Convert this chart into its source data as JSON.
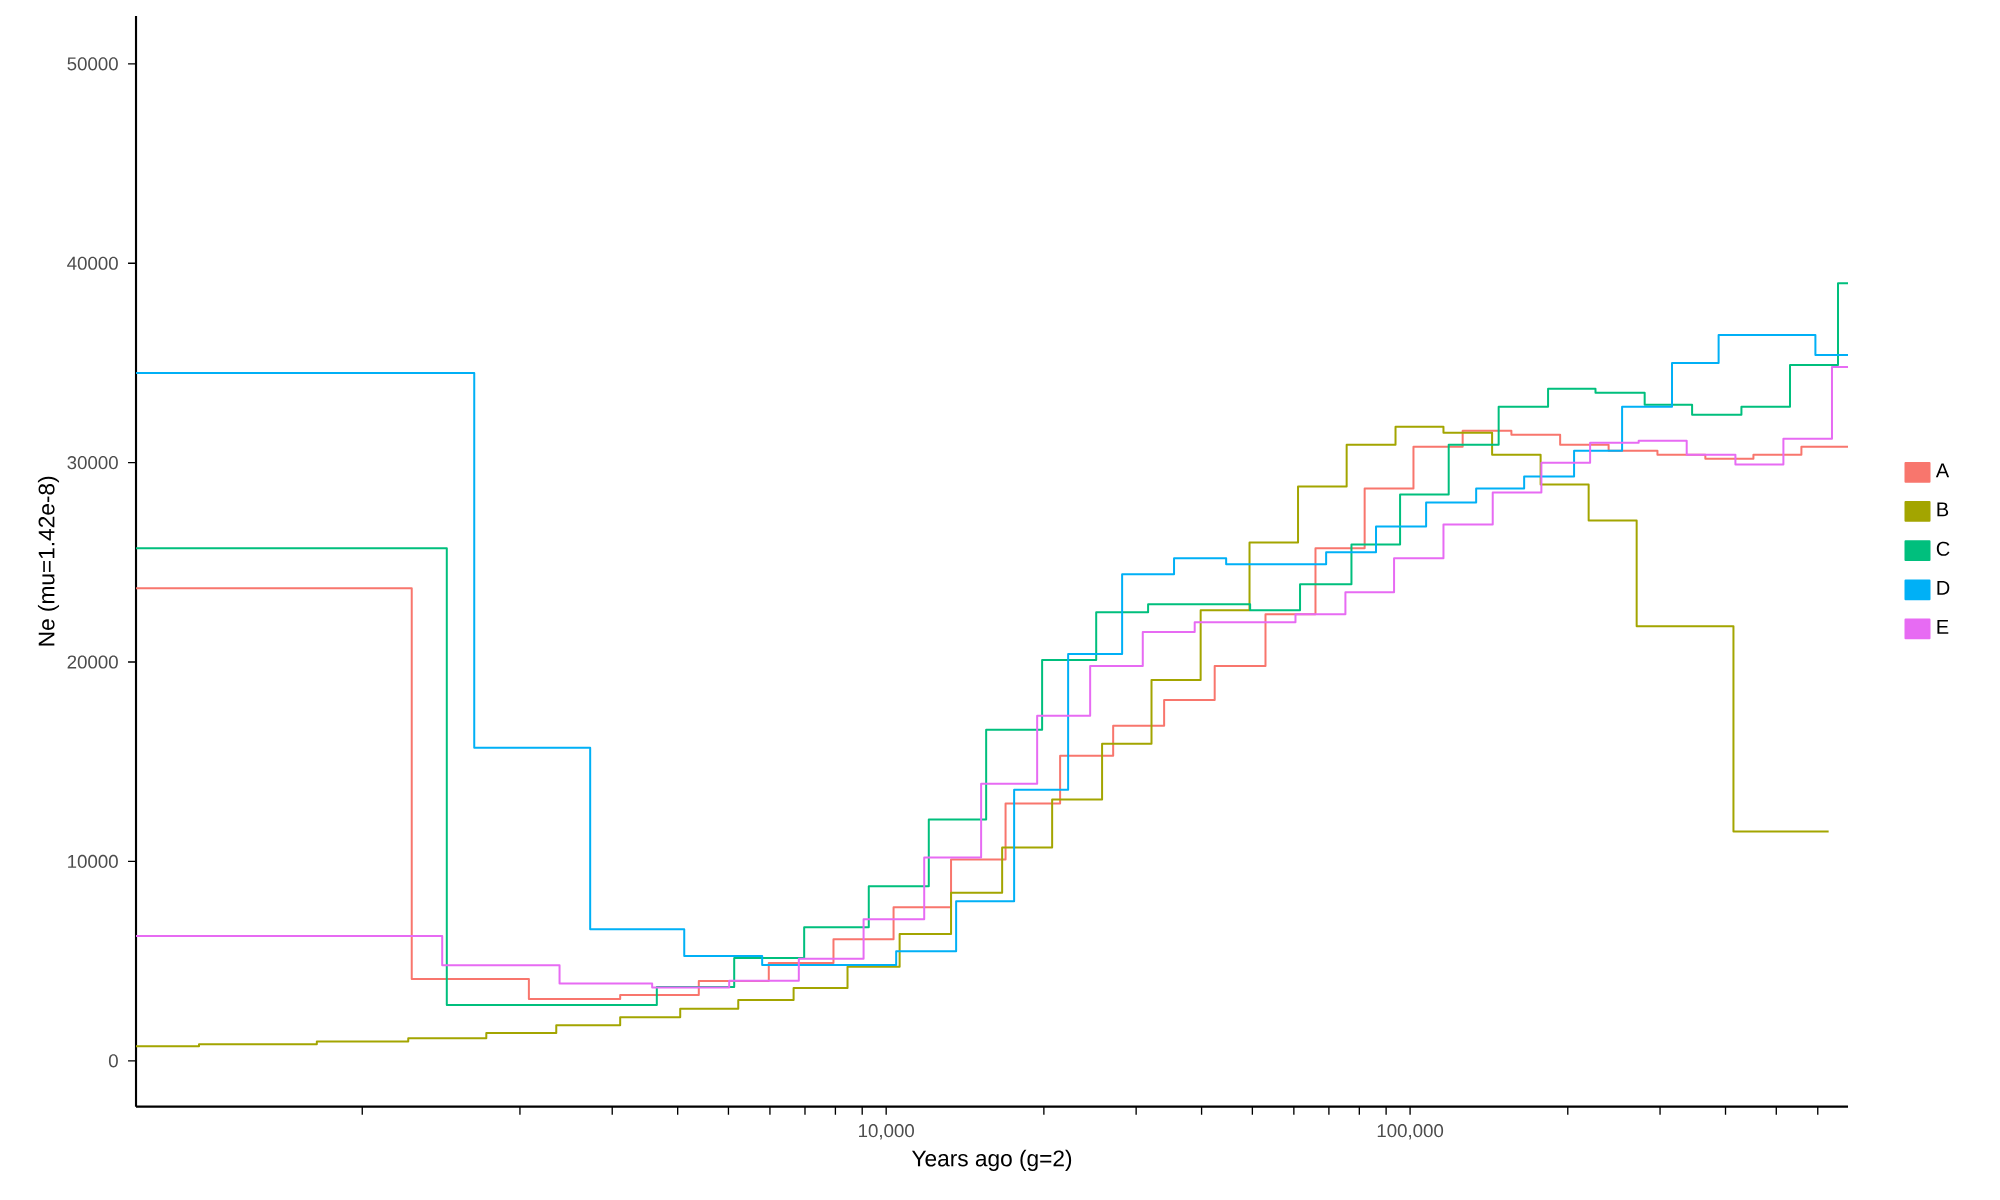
{
  "chart_data": {
    "type": "step",
    "xlabel": "Years ago (g=2)",
    "ylabel": "Ne (mu=1.42e-8)",
    "log": "x",
    "legend": "right",
    "xlim": [
      370,
      685400
    ],
    "ylim": [
      -2300,
      52400
    ],
    "xticks": [
      {
        "value": 1000,
        "label": null
      },
      {
        "value": 2000,
        "label": null
      },
      {
        "value": 3000,
        "label": null
      },
      {
        "value": 4000,
        "label": null
      },
      {
        "value": 5000,
        "label": null
      },
      {
        "value": 6000,
        "label": null
      },
      {
        "value": 7000,
        "label": null
      },
      {
        "value": 8000,
        "label": null
      },
      {
        "value": 9000,
        "label": null
      },
      {
        "value": 10000,
        "label": "10,000"
      },
      {
        "value": 20000,
        "label": null
      },
      {
        "value": 30000,
        "label": null
      },
      {
        "value": 40000,
        "label": null
      },
      {
        "value": 50000,
        "label": null
      },
      {
        "value": 60000,
        "label": null
      },
      {
        "value": 70000,
        "label": null
      },
      {
        "value": 80000,
        "label": null
      },
      {
        "value": 90000,
        "label": null
      },
      {
        "value": 100000,
        "label": "100,000"
      },
      {
        "value": 200000,
        "label": null
      },
      {
        "value": 300000,
        "label": null
      },
      {
        "value": 400000,
        "label": null
      },
      {
        "value": 500000,
        "label": null
      },
      {
        "value": 600000,
        "label": null
      }
    ],
    "yticks": [
      0,
      10000,
      20000,
      30000,
      40000,
      50000
    ],
    "series": [
      {
        "name": "A",
        "color": "#f8766d",
        "x": [
          370,
          1243,
          2080,
          3107,
          4389,
          5970,
          7934,
          10330,
          13300,
          16900,
          21480,
          27120,
          33930,
          42370,
          52970,
          65990,
          81900,
          101500,
          126000,
          156100,
          193400,
          239300,
          296600,
          366100,
          452200,
          558400,
          685400
        ],
        "values": [
          23700,
          4100,
          3100,
          3300,
          4000,
          4900,
          6100,
          7700,
          10100,
          12900,
          15300,
          16800,
          18100,
          19800,
          22400,
          25700,
          28700,
          30800,
          31600,
          31400,
          30900,
          30600,
          30400,
          30200,
          30400,
          30800,
          30800
        ]
      },
      {
        "name": "B",
        "color": "#a3a500",
        "x": [
          370,
          488,
          819,
          1224,
          1725,
          2346,
          3107,
          4045,
          5220,
          6658,
          8438,
          10610,
          13300,
          16650,
          20740,
          25830,
          32100,
          39840,
          49380,
          61120,
          75680,
          93800,
          115800,
          143400,
          177500,
          219200,
          270700,
          414200,
          629400
        ],
        "values": [
          730,
          830,
          970,
          1130,
          1400,
          1780,
          2180,
          2610,
          3050,
          3650,
          4720,
          6360,
          8430,
          10700,
          13100,
          15900,
          19100,
          22600,
          26000,
          28800,
          30900,
          31800,
          31500,
          30400,
          28900,
          27100,
          21800,
          11500,
          11500
        ]
      },
      {
        "name": "C",
        "color": "#00bf7d",
        "x": [
          370,
          1450,
          3650,
          5128,
          6975,
          9264,
          12060,
          15520,
          19850,
          25170,
          31620,
          49510,
          61660,
          77300,
          95700,
          118500,
          147600,
          183400,
          225900,
          280400,
          345400,
          429000,
          531100,
          655800,
          685400
        ],
        "values": [
          25700,
          2800,
          3700,
          5150,
          6700,
          8750,
          12100,
          16600,
          20100,
          22500,
          22900,
          22600,
          23900,
          25900,
          28400,
          30900,
          32800,
          33700,
          33500,
          32900,
          32400,
          32800,
          34900,
          39000,
          39000
        ]
      },
      {
        "name": "D",
        "color": "#00b0f6",
        "x": [
          370,
          1636,
          2723,
          4117,
          5799,
          10450,
          13600,
          17550,
          22250,
          28210,
          35440,
          44560,
          69150,
          86100,
          107300,
          133700,
          165100,
          205600,
          253900,
          316200,
          388100,
          593800,
          685400
        ],
        "values": [
          34500,
          15700,
          6600,
          5250,
          4800,
          5500,
          8000,
          13600,
          20400,
          24400,
          25200,
          24900,
          25500,
          26800,
          28000,
          28700,
          29300,
          30600,
          32800,
          35000,
          36400,
          35400,
          35400
        ]
      },
      {
        "name": "E",
        "color": "#e76bf3",
        "x": [
          370,
          1421,
          2380,
          3576,
          5016,
          6812,
          9055,
          11820,
          15180,
          19420,
          24510,
          30890,
          38810,
          60430,
          75270,
          93200,
          115800,
          143800,
          178100,
          220600,
          273100,
          337300,
          417800,
          515900,
          638700,
          685400
        ],
        "values": [
          6260,
          4790,
          3880,
          3680,
          4020,
          5120,
          7100,
          10200,
          13900,
          17300,
          19800,
          21500,
          22000,
          22400,
          23500,
          25200,
          26900,
          28500,
          30000,
          31000,
          31100,
          30400,
          29900,
          31200,
          34800,
          34800
        ]
      }
    ]
  }
}
